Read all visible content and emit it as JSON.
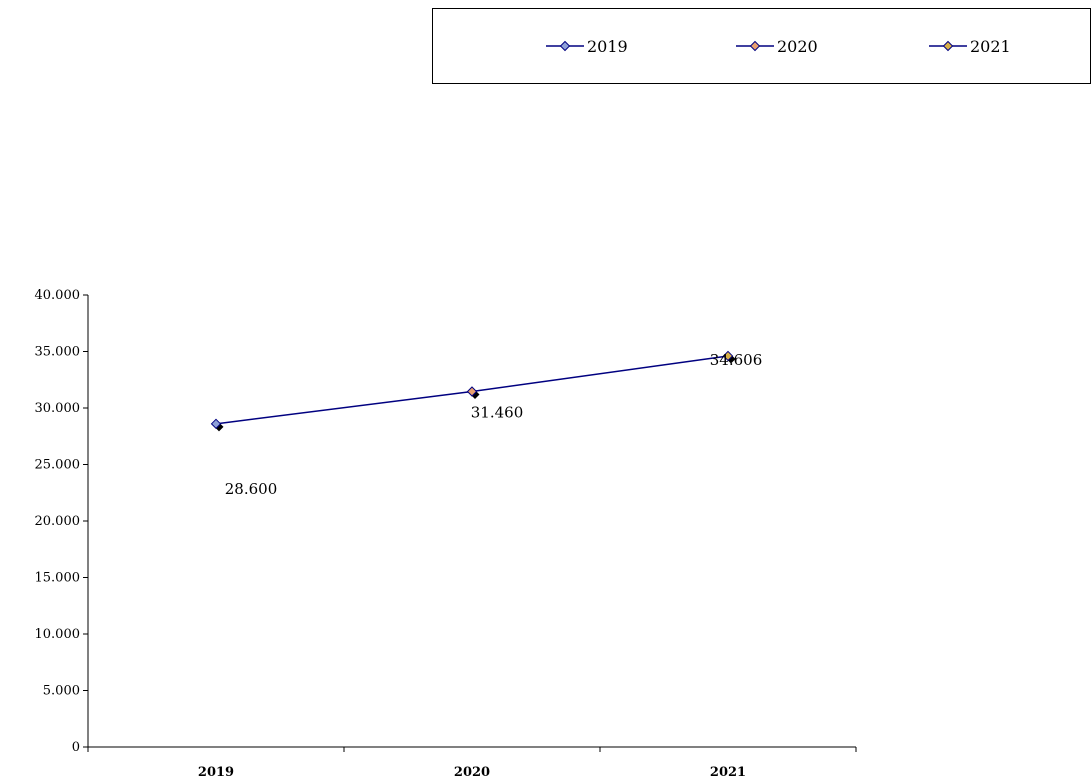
{
  "chart_data": {
    "type": "line",
    "categories": [
      "2019",
      "2020",
      "2021"
    ],
    "values": [
      28600,
      31460,
      34606
    ],
    "data_labels": [
      "28.600",
      "31.460",
      "34.606"
    ],
    "ylim": [
      0,
      40000
    ],
    "yticks": [
      0,
      5000,
      10000,
      15000,
      20000,
      25000,
      30000,
      35000,
      40000
    ],
    "ytick_labels": [
      "0",
      "5.000",
      "10.000",
      "15.000",
      "20.000",
      "25.000",
      "30.000",
      "35.000",
      "40.000"
    ],
    "grid": false,
    "legend": {
      "position": "top",
      "entries": [
        "2019",
        "2020",
        "2021"
      ],
      "marker_colors": [
        "#8EA0D8",
        "#E8A070",
        "#D8B048"
      ]
    },
    "line_color": "#000080"
  }
}
